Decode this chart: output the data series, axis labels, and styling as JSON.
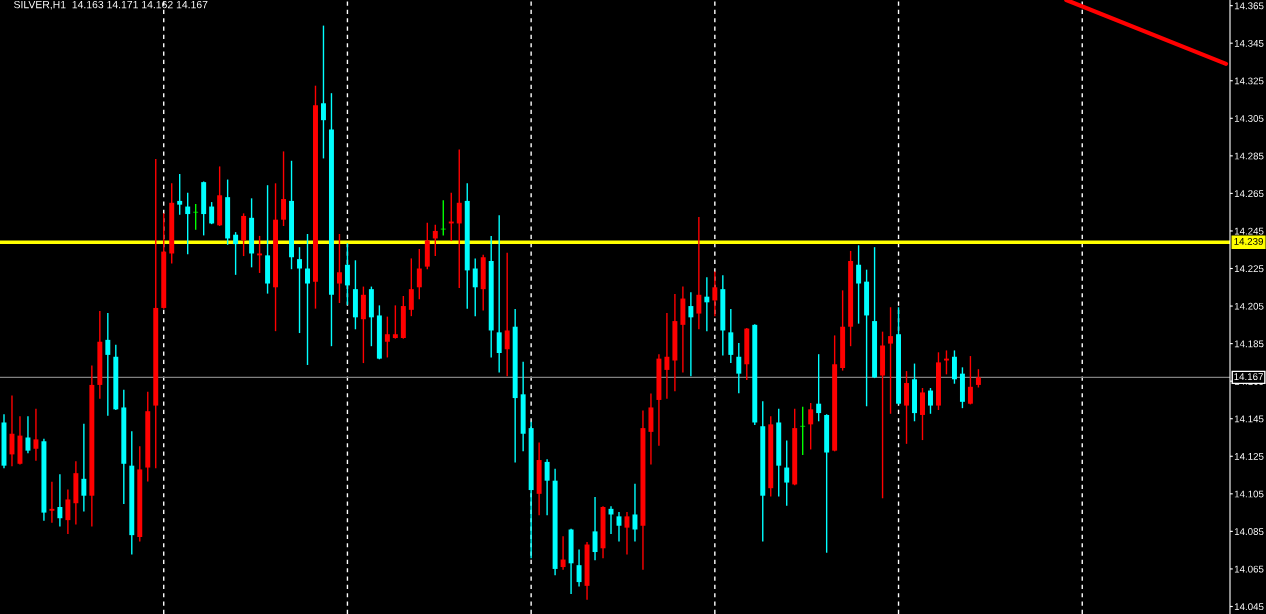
{
  "chart_data": {
    "type": "candlestick",
    "title": "SILVER,H1  14.163 14.171 14.162 14.167",
    "categories": [
      null,
      null,
      null,
      null,
      null,
      null,
      null,
      null,
      null,
      null,
      null,
      null,
      null,
      null,
      null,
      null,
      null,
      null,
      null,
      null,
      null,
      null,
      null,
      null,
      null,
      null,
      null,
      null,
      null,
      null,
      null,
      null,
      null,
      null,
      null,
      null,
      null,
      null,
      null,
      null,
      null,
      null,
      null,
      null,
      null,
      null,
      null,
      null,
      null,
      null,
      null,
      null,
      null,
      null,
      null,
      null,
      null,
      null,
      null,
      null,
      null,
      null,
      null,
      null,
      null,
      null,
      null,
      null,
      null,
      null,
      null,
      null,
      null,
      null,
      null,
      null,
      null,
      null,
      null,
      null,
      null,
      null,
      null,
      null,
      null,
      null,
      null,
      null,
      null,
      null,
      null,
      null,
      null,
      null,
      null,
      null,
      null,
      null,
      null,
      null,
      null,
      null,
      null,
      null,
      null,
      null,
      null,
      null,
      null,
      null,
      null,
      null,
      null,
      null,
      null,
      null,
      null,
      null,
      null,
      null,
      null,
      null,
      null,
      null,
      null,
      null,
      null,
      null,
      null,
      null,
      null,
      null,
      null,
      null,
      null,
      null,
      null,
      null,
      null,
      null,
      null,
      null,
      null,
      null,
      null,
      null,
      null,
      null,
      null,
      null,
      null,
      null,
      null,
      null
    ],
    "ohlc": [
      [
        14.143,
        14.147,
        14.119,
        14.12
      ],
      [
        14.126,
        14.157,
        14.12,
        14.137
      ],
      [
        14.121,
        14.146,
        14.121,
        14.136
      ],
      [
        14.135,
        14.146,
        14.127,
        14.128
      ],
      [
        14.129,
        14.15,
        14.123,
        14.134
      ],
      [
        14.133,
        14.134,
        14.091,
        14.095
      ],
      [
        14.096,
        14.111,
        14.09,
        14.097
      ],
      [
        14.098,
        14.115,
        14.088,
        14.092
      ],
      [
        14.091,
        14.107,
        14.084,
        14.102
      ],
      [
        14.1,
        14.122,
        14.089,
        14.116
      ],
      [
        14.113,
        14.142,
        14.096,
        14.104
      ],
      [
        14.104,
        14.173,
        14.088,
        14.163
      ],
      [
        14.163,
        14.202,
        14.156,
        14.186
      ],
      [
        14.187,
        14.201,
        14.147,
        14.179
      ],
      [
        14.178,
        14.184,
        14.15,
        14.15
      ],
      [
        14.151,
        14.16,
        14.1,
        14.121
      ],
      [
        14.12,
        14.138,
        14.073,
        14.083
      ],
      [
        14.082,
        14.13,
        14.08,
        14.118
      ],
      [
        14.119,
        14.159,
        14.112,
        14.149
      ],
      [
        14.152,
        14.283,
        14.119,
        14.204
      ],
      [
        14.204,
        14.254,
        14.204,
        14.234
      ],
      [
        14.233,
        14.27,
        14.228,
        14.26
      ],
      [
        14.261,
        14.275,
        14.254,
        14.259
      ],
      [
        14.258,
        14.265,
        14.233,
        14.254
      ],
      [
        14.255,
        14.259,
        14.246,
        14.255
      ],
      [
        14.271,
        14.271,
        14.243,
        14.254
      ],
      [
        14.258,
        14.26,
        14.249,
        14.249
      ],
      [
        14.248,
        14.279,
        14.248,
        14.264
      ],
      [
        14.263,
        14.272,
        14.238,
        14.241
      ],
      [
        14.243,
        14.244,
        14.222,
        14.238
      ],
      [
        14.24,
        14.254,
        14.232,
        14.253
      ],
      [
        14.252,
        14.262,
        14.226,
        14.233
      ],
      [
        14.232,
        14.242,
        14.223,
        14.233
      ],
      [
        14.232,
        14.269,
        14.212,
        14.217
      ],
      [
        14.215,
        14.27,
        14.192,
        14.251
      ],
      [
        14.251,
        14.287,
        14.248,
        14.262
      ],
      [
        14.261,
        14.282,
        14.225,
        14.231
      ],
      [
        14.23,
        14.236,
        14.191,
        14.225
      ],
      [
        14.225,
        14.243,
        14.174,
        14.217
      ],
      [
        14.218,
        14.322,
        14.204,
        14.312
      ],
      [
        14.313,
        14.354,
        14.284,
        14.304
      ],
      [
        14.299,
        14.318,
        14.184,
        14.211
      ],
      [
        14.217,
        14.243,
        14.207,
        14.223
      ],
      [
        14.227,
        14.238,
        14.206,
        14.216
      ],
      [
        14.214,
        14.229,
        14.193,
        14.199
      ],
      [
        14.198,
        14.215,
        14.175,
        14.211
      ],
      [
        14.214,
        14.215,
        14.184,
        14.199
      ],
      [
        14.2,
        14.205,
        14.177,
        14.177
      ],
      [
        14.186,
        14.199,
        14.178,
        14.19
      ],
      [
        14.188,
        14.205,
        14.188,
        14.19
      ],
      [
        14.188,
        14.21,
        14.188,
        14.205
      ],
      [
        14.203,
        14.23,
        14.2,
        14.214
      ],
      [
        14.215,
        14.235,
        14.209,
        14.225
      ],
      [
        14.226,
        14.249,
        14.225,
        14.24
      ],
      [
        14.241,
        14.248,
        14.232,
        14.245
      ],
      [
        14.246,
        14.261,
        14.243,
        14.246
      ],
      [
        14.249,
        14.265,
        14.24,
        14.25
      ],
      [
        14.249,
        14.288,
        14.215,
        14.26
      ],
      [
        14.261,
        14.27,
        14.204,
        14.224
      ],
      [
        14.225,
        14.23,
        14.2,
        14.215
      ],
      [
        14.214,
        14.232,
        14.203,
        14.231
      ],
      [
        14.229,
        14.242,
        14.178,
        14.192
      ],
      [
        14.191,
        14.253,
        14.17,
        14.18
      ],
      [
        14.182,
        14.233,
        14.168,
        14.192
      ],
      [
        14.194,
        14.203,
        14.122,
        14.156
      ],
      [
        14.158,
        14.175,
        14.128,
        14.137
      ],
      [
        14.14,
        14.143,
        14.071,
        14.107
      ],
      [
        14.105,
        14.132,
        14.094,
        14.123
      ],
      [
        14.122,
        14.123,
        14.094,
        14.112
      ],
      [
        14.112,
        14.118,
        14.062,
        14.065
      ],
      [
        14.066,
        14.082,
        14.065,
        14.07
      ],
      [
        14.086,
        14.086,
        14.052,
        14.068
      ],
      [
        14.067,
        14.075,
        14.056,
        14.058
      ],
      [
        14.056,
        14.079,
        14.049,
        14.078
      ],
      [
        14.085,
        14.103,
        14.07,
        14.074
      ],
      [
        14.076,
        14.098,
        14.071,
        14.098
      ],
      [
        14.097,
        14.098,
        14.084,
        14.094
      ],
      [
        14.093,
        14.095,
        14.08,
        14.088
      ],
      [
        14.087,
        14.095,
        14.073,
        14.093
      ],
      [
        14.094,
        14.11,
        14.08,
        14.086
      ],
      [
        14.088,
        14.149,
        14.065,
        14.14
      ],
      [
        14.138,
        14.158,
        14.121,
        14.151
      ],
      [
        14.155,
        14.179,
        14.131,
        14.177
      ],
      [
        14.171,
        14.201,
        14.156,
        14.178
      ],
      [
        14.176,
        14.211,
        14.16,
        14.197
      ],
      [
        14.195,
        14.215,
        14.17,
        14.209
      ],
      [
        14.205,
        14.212,
        14.168,
        14.199
      ],
      [
        14.201,
        14.252,
        14.193,
        14.211
      ],
      [
        14.21,
        14.22,
        14.192,
        14.207
      ],
      [
        14.208,
        14.223,
        14.2,
        14.215
      ],
      [
        14.214,
        14.221,
        14.179,
        14.192
      ],
      [
        14.191,
        14.203,
        14.175,
        14.179
      ],
      [
        14.178,
        14.185,
        14.159,
        14.169
      ],
      [
        14.174,
        14.193,
        14.166,
        14.193
      ],
      [
        14.195,
        14.195,
        14.142,
        14.143
      ],
      [
        14.141,
        14.154,
        14.08,
        14.104
      ],
      [
        14.108,
        14.146,
        14.104,
        14.142
      ],
      [
        14.143,
        14.15,
        14.104,
        14.12
      ],
      [
        14.119,
        14.133,
        14.099,
        14.111
      ],
      [
        14.11,
        14.15,
        14.11,
        14.14
      ],
      [
        14.141,
        14.151,
        14.126,
        14.141
      ],
      [
        14.142,
        14.153,
        14.129,
        14.15
      ],
      [
        14.153,
        14.179,
        14.144,
        14.148
      ],
      [
        14.147,
        14.147,
        14.074,
        14.127
      ],
      [
        14.128,
        14.189,
        14.128,
        14.174
      ],
      [
        14.172,
        14.213,
        14.171,
        14.194
      ],
      [
        14.194,
        14.234,
        14.184,
        14.229
      ],
      [
        14.227,
        14.237,
        14.196,
        14.217
      ],
      [
        14.218,
        14.224,
        14.152,
        14.2
      ],
      [
        14.197,
        14.236,
        14.167,
        14.167
      ],
      [
        14.168,
        14.191,
        14.103,
        14.184
      ],
      [
        14.185,
        14.204,
        14.148,
        14.189
      ],
      [
        14.19,
        14.204,
        14.153,
        14.153
      ],
      [
        14.152,
        14.17,
        14.132,
        14.164
      ],
      [
        14.166,
        14.174,
        14.144,
        14.148
      ],
      [
        14.147,
        14.161,
        14.134,
        14.159
      ],
      [
        14.16,
        14.161,
        14.148,
        14.152
      ],
      [
        14.152,
        14.18,
        14.15,
        14.175
      ],
      [
        14.176,
        14.181,
        14.169,
        14.177
      ],
      [
        14.178,
        14.181,
        14.164,
        14.166
      ],
      [
        14.169,
        14.172,
        14.151,
        14.154
      ],
      [
        14.153,
        14.178,
        14.153,
        14.162
      ],
      [
        14.163,
        14.171,
        14.162,
        14.167
      ],
      null,
      null,
      null,
      null,
      null,
      null,
      null,
      null,
      null,
      null,
      null,
      null,
      null,
      null,
      null,
      null,
      null,
      null,
      null,
      null,
      null,
      null,
      null,
      null,
      null,
      null,
      null,
      null,
      null,
      null,
      null
    ],
    "colors": [
      "#00ffff",
      "#ff0000",
      "#ff0000",
      "#00ffff",
      "#ff0000",
      "#00ffff",
      "#ff0000",
      "#00ffff",
      "#ff0000",
      "#ff0000",
      "#00ffff",
      "#ff0000",
      "#ff0000",
      "#00ffff",
      "#00ffff",
      "#00ffff",
      "#00ffff",
      "#ff0000",
      "#ff0000",
      "#ff0000",
      "#ff0000",
      "#ff0000",
      "#00ffff",
      "#00ffff",
      "#00ff00",
      "#00ffff",
      "#00ffff",
      "#ff0000",
      "#00ffff",
      "#00ffff",
      "#ff0000",
      "#00ffff",
      "#ff0000",
      "#00ffff",
      "#ff0000",
      "#ff0000",
      "#00ffff",
      "#00ffff",
      "#00ffff",
      "#ff0000",
      "#00ffff",
      "#00ffff",
      "#ff0000",
      "#00ffff",
      "#00ffff",
      "#ff0000",
      "#00ffff",
      "#00ffff",
      "#ff0000",
      "#ff0000",
      "#ff0000",
      "#ff0000",
      "#ff0000",
      "#ff0000",
      "#ff0000",
      "#00ff00",
      "#ff0000",
      "#ff0000",
      "#00ffff",
      "#00ffff",
      "#ff0000",
      "#00ffff",
      "#00ffff",
      "#ff0000",
      "#00ffff",
      "#00ffff",
      "#00ffff",
      "#ff0000",
      "#00ffff",
      "#00ffff",
      "#ff0000",
      "#00ffff",
      "#00ffff",
      "#ff0000",
      "#00ffff",
      "#ff0000",
      "#00ffff",
      "#00ffff",
      "#ff0000",
      "#00ffff",
      "#ff0000",
      "#ff0000",
      "#ff0000",
      "#ff0000",
      "#ff0000",
      "#ff0000",
      "#00ffff",
      "#ff0000",
      "#00ffff",
      "#ff0000",
      "#00ffff",
      "#00ffff",
      "#00ffff",
      "#ff0000",
      "#00ffff",
      "#00ffff",
      "#ff0000",
      "#00ffff",
      "#00ffff",
      "#ff0000",
      "#00ff00",
      "#ff0000",
      "#00ffff",
      "#00ffff",
      "#ff0000",
      "#ff0000",
      "#ff0000",
      "#00ffff",
      "#00ffff",
      "#00ffff",
      "#ff0000",
      "#ff0000",
      "#00ffff",
      "#ff0000",
      "#00ffff",
      "#ff0000",
      "#00ffff",
      "#ff0000",
      "#ff0000",
      "#00ffff",
      "#00ffff",
      "#ff0000",
      "#ff0000",
      null,
      null,
      null,
      null,
      null,
      null,
      null,
      null,
      null,
      null,
      null,
      null,
      null,
      null,
      null,
      null,
      null,
      null,
      null,
      null,
      null,
      null,
      null,
      null,
      null,
      null,
      null,
      null,
      null,
      null,
      null
    ],
    "series": [
      {
        "type": "line",
        "color": "#ff0000",
        "values": [
          null,
          null,
          null,
          null,
          null,
          null,
          null,
          null,
          null,
          null,
          null,
          null,
          null,
          null,
          null,
          null,
          null,
          null,
          null,
          null,
          null,
          null,
          null,
          null,
          null,
          null,
          null,
          null,
          null,
          null,
          null,
          null,
          null,
          null,
          null,
          null,
          null,
          null,
          null,
          null,
          null,
          null,
          null,
          null,
          null,
          null,
          null,
          null,
          null,
          null,
          null,
          null,
          null,
          null,
          null,
          null,
          null,
          null,
          null,
          null,
          null,
          null,
          null,
          null,
          null,
          null,
          null,
          null,
          null,
          null,
          null,
          null,
          null,
          null,
          null,
          null,
          null,
          null,
          null,
          null,
          null,
          null,
          null,
          null,
          null,
          null,
          null,
          null,
          null,
          null,
          null,
          null,
          null,
          null,
          null,
          null,
          null,
          null,
          null,
          null,
          null,
          null,
          null,
          null,
          null,
          null,
          null,
          null,
          null,
          null,
          null,
          null,
          null,
          null,
          null,
          null,
          null,
          null,
          null,
          null,
          null,
          null,
          null,
          null,
          null,
          null,
          null,
          null,
          null,
          null,
          null,
          null,
          null,
          14.368,
          null,
          null,
          null,
          null,
          null,
          null,
          null,
          null,
          null,
          null,
          null,
          null,
          null,
          null,
          null,
          null,
          null,
          null,
          null,
          14.334
        ]
      }
    ],
    "ylim": [
      14.041,
      14.368
    ],
    "yticks": [
      14.045,
      14.065,
      14.085,
      14.105,
      14.125,
      14.145,
      14.165,
      14.185,
      14.205,
      14.225,
      14.245,
      14.265,
      14.285,
      14.305,
      14.325,
      14.345,
      14.365
    ],
    "tick_labels": "y",
    "ref_lines": [
      {
        "axis": "y",
        "value": 14.239,
        "label": "14.239",
        "color": "#ffff00"
      },
      {
        "axis": "y",
        "value": 14.167,
        "label": "14.167",
        "color": "#808080"
      }
    ]
  }
}
